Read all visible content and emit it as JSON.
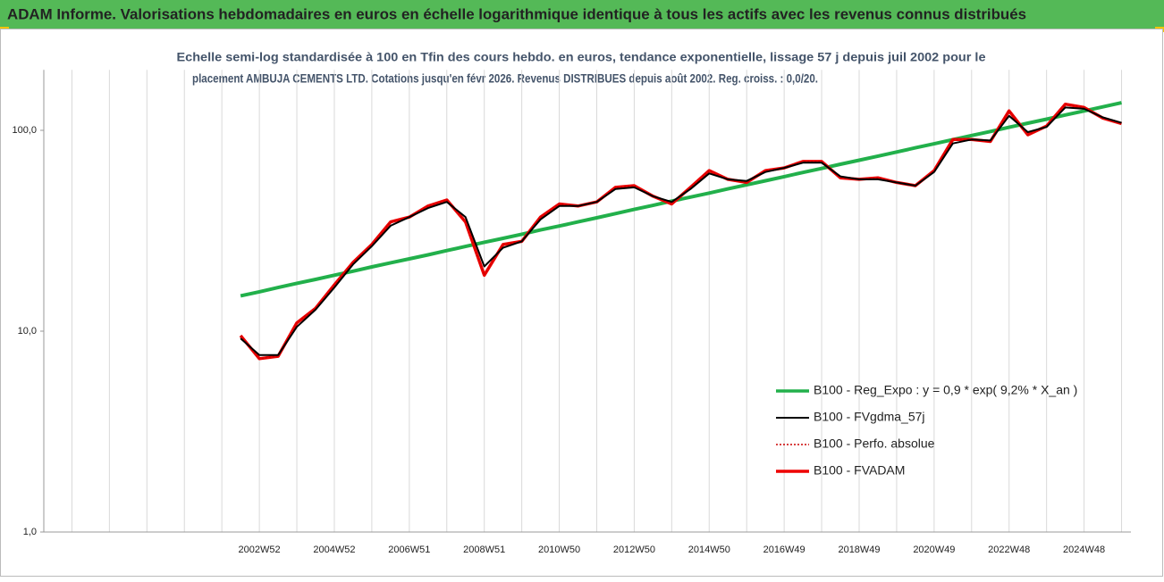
{
  "banner": "ADAM Informe. Valorisations hebdomadaires en euros en échelle logarithmique identique à tous les actifs avec les revenus connus distribués",
  "chart_data": {
    "type": "line",
    "title": [
      "Echelle semi-log standardisée à 100 en Tfin des cours hebdo. en euros, tendance exponentielle, lissage 57 j depuis juil 2002 pour le",
      "placement AMBUJA CEMENTS LTD. Cotations jusqu'en févr 2026. Revenus DISTRIBUES depuis août 2002. Reg. croiss. : 0,0/20."
    ],
    "log_scale": true,
    "grid": true,
    "legend": "lower right",
    "categories": [
      null,
      null,
      null,
      null,
      null,
      null,
      null,
      null,
      null,
      null,
      null,
      "2002W52",
      null,
      null,
      null,
      "2004W52",
      null,
      null,
      null,
      "2006W51",
      null,
      null,
      null,
      "2008W51",
      null,
      null,
      null,
      "2010W50",
      null,
      null,
      null,
      "2012W50",
      null,
      null,
      null,
      "2014W50",
      null,
      null,
      null,
      "2016W49",
      null,
      null,
      null,
      "2018W49",
      null,
      null,
      null,
      "2020W49",
      null,
      null,
      null,
      "2022W48",
      null,
      null,
      null,
      "2024W48",
      null,
      null
    ],
    "ylim": [
      1,
      200
    ],
    "yticks": [
      {
        "value": 1,
        "label": "1,0"
      },
      {
        "value": 10,
        "label": "10,0"
      },
      {
        "value": 100,
        "label": "100,0"
      }
    ],
    "series": [
      {
        "name": "B100 - Reg_Expo : y = 0,9 * exp( 9,2% *  X_an )",
        "color": "#22b04b",
        "style": "solid",
        "width": 4,
        "values": [
          null,
          null,
          null,
          null,
          null,
          null,
          null,
          null,
          null,
          null,
          15,
          15.7,
          16.5,
          17.3,
          18.1,
          19.0,
          19.9,
          20.9,
          21.9,
          22.9,
          24.0,
          25.2,
          26.4,
          27.7,
          29.0,
          30.4,
          31.9,
          33.4,
          35.0,
          36.7,
          38.5,
          40.4,
          42.3,
          44.4,
          46.5,
          48.7,
          51.1,
          53.5,
          56.1,
          58.8,
          61.7,
          64.6,
          67.8,
          71.0,
          74.4,
          78.0,
          81.8,
          85.7,
          89.9,
          94.2,
          98.7,
          103.5,
          108.5,
          113.7,
          119.2,
          124.9,
          130.9,
          137.2
        ]
      },
      {
        "name": "B100 - FVgdma_57j",
        "color": "#000000",
        "style": "solid",
        "width": 2,
        "values": [
          null,
          null,
          null,
          null,
          null,
          null,
          null,
          null,
          null,
          null,
          9.2,
          7.6,
          7.6,
          10.5,
          12.8,
          16.5,
          21.5,
          26.5,
          33.5,
          37,
          41,
          44,
          37,
          21,
          26,
          28,
          36,
          42,
          42,
          44,
          51,
          52,
          47,
          44,
          51,
          61,
          57,
          56,
          62,
          65,
          69,
          69,
          59,
          57,
          57,
          55,
          53,
          62,
          86,
          90,
          89,
          118,
          98,
          104,
          130,
          128,
          116,
          109
        ]
      },
      {
        "name": "B100 - Perfo. absolue",
        "color": "#cc0000",
        "style": "dotted",
        "width": 1.5,
        "values": [
          null,
          null,
          null,
          null,
          null,
          null,
          null,
          null,
          null,
          null,
          9.5,
          7.3,
          7.5,
          11,
          13,
          17,
          22,
          27,
          35,
          37,
          42,
          45,
          35,
          19,
          27,
          28,
          37,
          43,
          42,
          44,
          52,
          53,
          47,
          43,
          52,
          63,
          57,
          55,
          63,
          65,
          70,
          70,
          58,
          57,
          58,
          55,
          53,
          63,
          90,
          90,
          88,
          125,
          95,
          105,
          135,
          130,
          115,
          108
        ]
      },
      {
        "name": "B100 - FVADAM",
        "color": "#ee0000",
        "style": "solid",
        "width": 3.5,
        "values": [
          null,
          null,
          null,
          null,
          null,
          null,
          null,
          null,
          null,
          null,
          9.5,
          7.3,
          7.5,
          11,
          13,
          17,
          22,
          27,
          35,
          37,
          42,
          45,
          35,
          19,
          27,
          28,
          37,
          43,
          42,
          44,
          52,
          53,
          47,
          43,
          52,
          63,
          57,
          55,
          63,
          65,
          70,
          70,
          58,
          57,
          58,
          55,
          53,
          63,
          90,
          90,
          88,
          125,
          95,
          105,
          135,
          130,
          115,
          108
        ]
      }
    ]
  }
}
